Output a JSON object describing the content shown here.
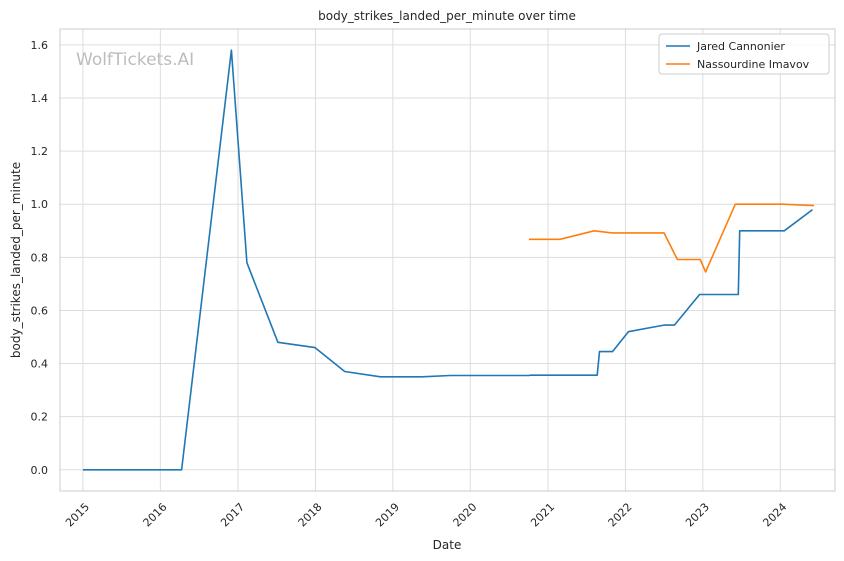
{
  "chart_data": {
    "type": "line",
    "title": "body_strikes_landed_per_minute over time",
    "xlabel": "Date",
    "ylabel": "body_strikes_landed_per_minute",
    "watermark": "WolfTickets.AI",
    "xlim": [
      "2014-09-15",
      "2024-09-15"
    ],
    "ylim": [
      -0.08,
      1.66
    ],
    "x_ticks": [
      "2015-01-01",
      "2016-01-01",
      "2017-01-01",
      "2018-01-01",
      "2019-01-01",
      "2020-01-01",
      "2021-01-01",
      "2022-01-01",
      "2023-01-01",
      "2024-01-01"
    ],
    "x_tick_labels": [
      "2015",
      "2016",
      "2017",
      "2018",
      "2019",
      "2020",
      "2021",
      "2022",
      "2023",
      "2024"
    ],
    "y_ticks": [
      0.0,
      0.2,
      0.4,
      0.6,
      0.8,
      1.0,
      1.2,
      1.4,
      1.6
    ],
    "y_tick_labels": [
      "0.0",
      "0.2",
      "0.4",
      "0.6",
      "0.8",
      "1.0",
      "1.2",
      "1.4",
      "1.6"
    ],
    "grid": true,
    "legend_position": "top-right",
    "series": [
      {
        "name": "Jared Cannonier",
        "color": "#1f77b4",
        "points": [
          {
            "x": "2015-01-01",
            "y": 0.0
          },
          {
            "x": "2016-04-10",
            "y": 0.0
          },
          {
            "x": "2016-12-01",
            "y": 1.58
          },
          {
            "x": "2017-02-12",
            "y": 0.78
          },
          {
            "x": "2017-07-08",
            "y": 0.48
          },
          {
            "x": "2017-12-30",
            "y": 0.46
          },
          {
            "x": "2018-05-19",
            "y": 0.37
          },
          {
            "x": "2018-11-03",
            "y": 0.35
          },
          {
            "x": "2019-05-18",
            "y": 0.35
          },
          {
            "x": "2019-09-28",
            "y": 0.355
          },
          {
            "x": "2020-10-03",
            "y": 0.355
          },
          {
            "x": "2020-10-10",
            "y": 0.356
          },
          {
            "x": "2021-08-21",
            "y": 0.356
          },
          {
            "x": "2021-09-01",
            "y": 0.445
          },
          {
            "x": "2021-11-01",
            "y": 0.445
          },
          {
            "x": "2022-01-15",
            "y": 0.52
          },
          {
            "x": "2022-07-02",
            "y": 0.545
          },
          {
            "x": "2022-08-20",
            "y": 0.545
          },
          {
            "x": "2022-12-17",
            "y": 0.66
          },
          {
            "x": "2023-06-17",
            "y": 0.66
          },
          {
            "x": "2023-06-24",
            "y": 0.9
          },
          {
            "x": "2024-01-20",
            "y": 0.9
          },
          {
            "x": "2024-06-01",
            "y": 0.98
          }
        ]
      },
      {
        "name": "Nassourdine Imavov",
        "color": "#ff7f0e",
        "points": [
          {
            "x": "2020-10-03",
            "y": 0.868
          },
          {
            "x": "2021-02-27",
            "y": 0.868
          },
          {
            "x": "2021-08-07",
            "y": 0.9
          },
          {
            "x": "2021-10-30",
            "y": 0.892
          },
          {
            "x": "2022-07-02",
            "y": 0.892
          },
          {
            "x": "2022-09-03",
            "y": 0.792
          },
          {
            "x": "2022-12-20",
            "y": 0.792
          },
          {
            "x": "2023-01-14",
            "y": 0.745
          },
          {
            "x": "2023-06-03",
            "y": 1.0
          },
          {
            "x": "2024-01-10",
            "y": 1.0
          },
          {
            "x": "2024-06-08",
            "y": 0.995
          }
        ]
      }
    ]
  }
}
